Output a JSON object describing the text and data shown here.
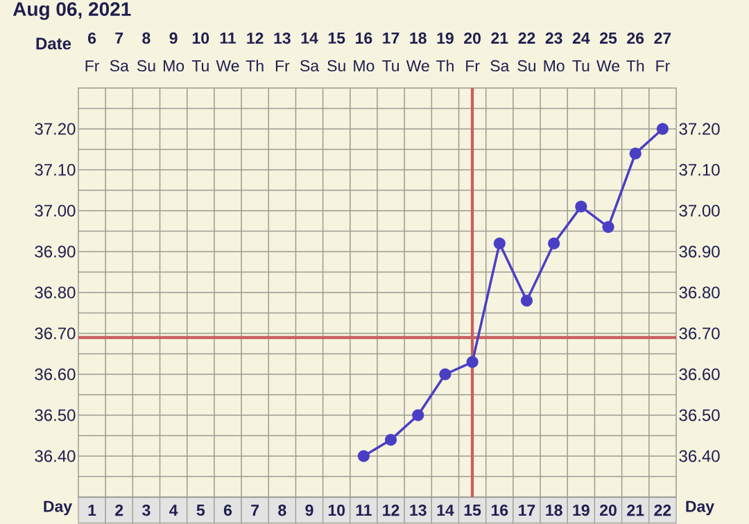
{
  "chart_data": {
    "type": "line",
    "title": "Aug 06, 2021",
    "xlabel": "Day",
    "x2label": "Date",
    "xlim": [
      0.5,
      22.5
    ],
    "xticks": [
      1,
      2,
      3,
      4,
      5,
      6,
      7,
      8,
      9,
      10,
      11,
      12,
      13,
      14,
      15,
      16,
      17,
      18,
      19,
      20,
      21,
      22
    ],
    "x2lim": [
      5.5,
      27.5
    ],
    "x2ticks": [
      {
        "value": 6,
        "label": "**6** Fr"
      },
      {
        "value": 7,
        "label": "**7** Sa"
      },
      {
        "value": 8,
        "label": "**8** Su"
      },
      {
        "value": 9,
        "label": "**9** Mo"
      },
      {
        "value": 10,
        "label": "**10** Tu"
      },
      {
        "value": 11,
        "label": "**11** We"
      },
      {
        "value": 12,
        "label": "**12** Th"
      },
      {
        "value": 13,
        "label": "**13** Fr"
      },
      {
        "value": 14,
        "label": "**14** Sa"
      },
      {
        "value": 15,
        "label": "**15** Su"
      },
      {
        "value": 16,
        "label": "**16** Mo"
      },
      {
        "value": 17,
        "label": "**17** Tu"
      },
      {
        "value": 18,
        "label": "**18** We"
      },
      {
        "value": 19,
        "label": "**19** Th"
      },
      {
        "value": 20,
        "label": "**20** Fr"
      },
      {
        "value": 21,
        "label": "**21** Sa"
      },
      {
        "value": 22,
        "label": "**22** Su"
      },
      {
        "value": 23,
        "label": "**23** Mo"
      },
      {
        "value": 24,
        "label": "**24** Tu"
      },
      {
        "value": 25,
        "label": "**25** We"
      },
      {
        "value": 26,
        "label": "**26** Th"
      },
      {
        "value": 27,
        "label": "**27** Fr"
      }
    ],
    "ylim": [
      36.3,
      37.3
    ],
    "yticks": [
      {
        "value": 36.35,
        "label": null
      },
      {
        "value": 36.4,
        "label": "36.40"
      },
      {
        "value": 36.45,
        "label": null
      },
      {
        "value": 36.5,
        "label": "36.50"
      },
      {
        "value": 36.55,
        "label": null
      },
      {
        "value": 36.6,
        "label": "36.60"
      },
      {
        "value": 36.65,
        "label": null
      },
      {
        "value": 36.7,
        "label": "36.70"
      },
      {
        "value": 36.75,
        "label": null
      },
      {
        "value": 36.8,
        "label": "36.80"
      },
      {
        "value": 36.85,
        "label": null
      },
      {
        "value": 36.9,
        "label": "36.90"
      },
      {
        "value": 36.95,
        "label": null
      },
      {
        "value": 37.0,
        "label": "37.00"
      },
      {
        "value": 37.05,
        "label": null
      },
      {
        "value": 37.1,
        "label": "37.10"
      },
      {
        "value": 37.15,
        "label": null
      },
      {
        "value": 37.2,
        "label": "37.20"
      },
      {
        "value": 37.25,
        "label": null
      }
    ],
    "y2lim": [
      36.3,
      37.3
    ],
    "y2ticks": [
      {
        "value": 36.35,
        "label": null
      },
      {
        "value": 36.4,
        "label": "36.40"
      },
      {
        "value": 36.45,
        "label": null
      },
      {
        "value": 36.5,
        "label": "36.50"
      },
      {
        "value": 36.55,
        "label": null
      },
      {
        "value": 36.6,
        "label": "36.60"
      },
      {
        "value": 36.65,
        "label": null
      },
      {
        "value": 36.7,
        "label": "36.70"
      },
      {
        "value": 36.75,
        "label": null
      },
      {
        "value": 36.8,
        "label": "36.80"
      },
      {
        "value": 36.85,
        "label": null
      },
      {
        "value": 36.9,
        "label": "36.90"
      },
      {
        "value": 36.95,
        "label": null
      },
      {
        "value": 37.0,
        "label": "37.00"
      },
      {
        "value": 37.05,
        "label": null
      },
      {
        "value": 37.1,
        "label": "37.10"
      },
      {
        "value": 37.15,
        "label": null
      },
      {
        "value": 37.2,
        "label": "37.20"
      },
      {
        "value": 37.25,
        "label": null
      }
    ],
    "series": [
      {
        "color": "#4a3fc4",
        "x": [
          11,
          12,
          13,
          14,
          15,
          16,
          17,
          18,
          19,
          20,
          21,
          22
        ],
        "values": [
          36.4,
          36.44,
          36.5,
          36.6,
          36.63,
          36.92,
          36.78,
          36.92,
          37.01,
          36.96,
          37.14,
          37.2
        ]
      }
    ],
    "ref_lines": [
      {
        "axis": "x",
        "value": 15,
        "color": "#c95f5f"
      },
      {
        "axis": "y",
        "value": 36.69,
        "color": "#c95f5f"
      }
    ],
    "grid": true,
    "marker": "circle",
    "line_style": "solid"
  }
}
